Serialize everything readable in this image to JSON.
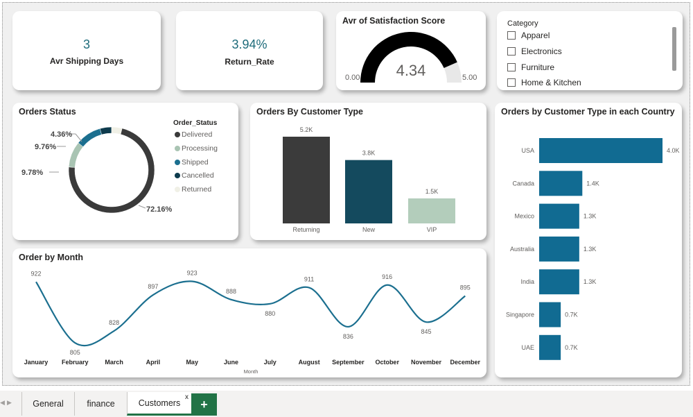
{
  "kpis": {
    "shipping": {
      "value": "3",
      "label": "Avr Shipping Days"
    },
    "return_rate": {
      "value": "3.94%",
      "label": "Return_Rate"
    }
  },
  "gauge": {
    "title": "Avr of Satisfaction Score",
    "value": 4.34,
    "value_label": "4.34",
    "min": 0,
    "max": 5,
    "min_label": "0.00",
    "max_label": "5.00",
    "fill_color": "#000000",
    "track_color": "#e8e8e8"
  },
  "category_slicer": {
    "title": "Category",
    "items": [
      "Apparel",
      "Electronics",
      "Furniture",
      "Home & Kitchen"
    ]
  },
  "orders_status": {
    "title": "Orders Status",
    "legend_title": "Order_Status",
    "legend": [
      {
        "label": "Delivered",
        "color": "#3a3a3a"
      },
      {
        "label": "Processing",
        "color": "#a9c4b3"
      },
      {
        "label": "Shipped",
        "color": "#1b6f8f"
      },
      {
        "label": "Cancelled",
        "color": "#0e3b4d"
      },
      {
        "label": "Returned",
        "color": "#f0f0e6"
      }
    ],
    "labels": {
      "delivered": "72.16%",
      "processing": "9.78%",
      "shipped": "9.76%",
      "cancelled": "4.36%"
    }
  },
  "customer_type": {
    "title": "Orders By Customer Type"
  },
  "country": {
    "title": "Orders by Customer Type in each Country"
  },
  "monthly": {
    "title": "Order by Month",
    "xlabel": "Month"
  },
  "tabs": {
    "general": "General",
    "finance": "finance",
    "customers": "Customers",
    "close": "x",
    "add": "+"
  },
  "chart_data": [
    {
      "type": "pie",
      "title": "Orders Status",
      "categories": [
        "Delivered",
        "Processing",
        "Shipped",
        "Cancelled",
        "Returned"
      ],
      "values": [
        72.16,
        9.78,
        9.76,
        4.36,
        3.94
      ],
      "colors": [
        "#3a3a3a",
        "#a9c4b3",
        "#1b6f8f",
        "#0e3b4d",
        "#f0f0e6"
      ],
      "legend": "right"
    },
    {
      "type": "bar",
      "title": "Orders By Customer Type",
      "categories": [
        "Returning",
        "New",
        "VIP"
      ],
      "values": [
        5200,
        3800,
        1500
      ],
      "labels": [
        "5.2K",
        "3.8K",
        "1.5K"
      ],
      "colors": [
        "#3b3b3b",
        "#144a5e",
        "#b3cdbb"
      ]
    },
    {
      "type": "bar",
      "orientation": "horizontal",
      "title": "Orders by Customer Type in each Country",
      "categories": [
        "USA",
        "Canada",
        "Mexico",
        "Australia",
        "India",
        "Singapore",
        "UAE"
      ],
      "values": [
        4000,
        1400,
        1300,
        1300,
        1300,
        700,
        700
      ],
      "labels": [
        "4.0K",
        "1.4K",
        "1.3K",
        "1.3K",
        "1.3K",
        "0.7K",
        "0.7K"
      ],
      "color": "#116b92"
    },
    {
      "type": "line",
      "title": "Order by Month",
      "xlabel": "Month",
      "categories": [
        "January",
        "February",
        "March",
        "April",
        "May",
        "June",
        "July",
        "August",
        "September",
        "October",
        "November",
        "December"
      ],
      "values": [
        922,
        805,
        828,
        897,
        923,
        888,
        880,
        911,
        836,
        916,
        845,
        895
      ],
      "color": "#1b6f8f"
    }
  ]
}
